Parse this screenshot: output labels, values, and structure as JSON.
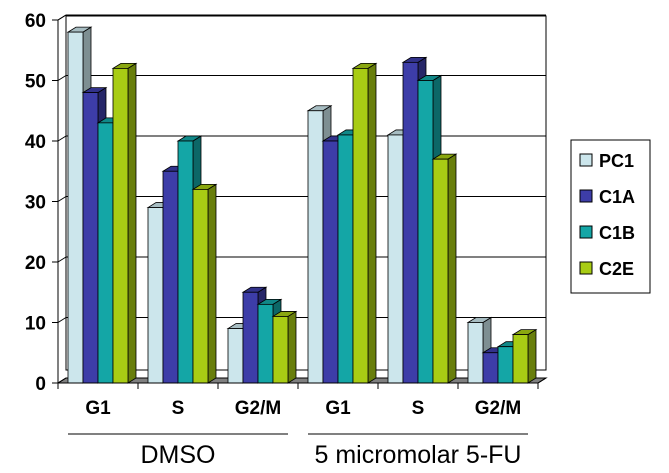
{
  "chart_data": {
    "type": "bar",
    "style": "3d-clustered-columns",
    "title": "",
    "xlabel": "",
    "ylabel": "",
    "ylim": [
      0,
      60
    ],
    "yticks": [
      0,
      10,
      20,
      30,
      40,
      50,
      60
    ],
    "grid": true,
    "legend_position": "right",
    "categories": [
      "G1",
      "S",
      "G2/M",
      "G1",
      "S",
      "G2/M"
    ],
    "groups": [
      {
        "label": "DMSO",
        "categories": [
          "G1",
          "S",
          "G2/M"
        ]
      },
      {
        "label": "5 micromolar 5-FU",
        "categories": [
          "G1",
          "S",
          "G2/M"
        ]
      }
    ],
    "series": [
      {
        "name": "PC1",
        "color": "#cce6ec",
        "values": [
          58,
          29,
          9,
          45,
          41,
          10
        ]
      },
      {
        "name": "C1A",
        "color": "#3d3da8",
        "values": [
          48,
          35,
          15,
          40,
          53,
          5
        ]
      },
      {
        "name": "C1B",
        "color": "#14a6a6",
        "values": [
          43,
          40,
          13,
          41,
          50,
          6
        ]
      },
      {
        "name": "C2E",
        "color": "#a8cc14",
        "values": [
          52,
          32,
          11,
          52,
          37,
          8
        ]
      }
    ]
  }
}
